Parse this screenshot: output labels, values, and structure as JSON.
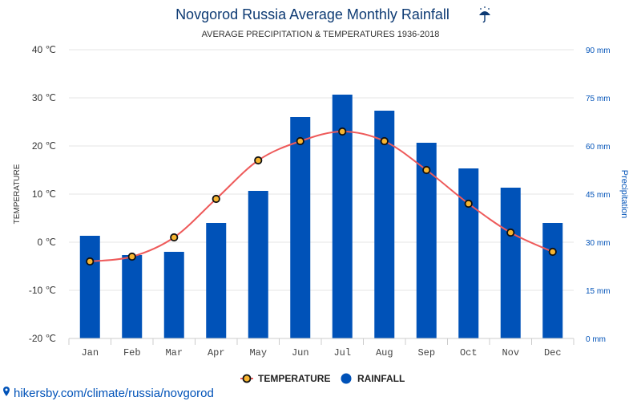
{
  "chart_data": {
    "type": "bar",
    "title": "Novgorod Russia Average Monthly Rainfall",
    "title_icon": "umbrella-icon",
    "subtitle": "AVERAGE PRECIPITATION & TEMPERATURES 1936-2018",
    "categories": [
      "Jan",
      "Feb",
      "Mar",
      "Apr",
      "May",
      "Jun",
      "Jul",
      "Aug",
      "Sep",
      "Oct",
      "Nov",
      "Dec"
    ],
    "y_left": {
      "label": "TEMPERATURE",
      "range": [
        -20,
        40
      ],
      "ticks": [
        "40 ℃",
        "30 ℃",
        "20 ℃",
        "10 ℃",
        "0 ℃",
        "-10 ℃",
        "-20 ℃"
      ]
    },
    "y_right": {
      "label": "Precipitation",
      "range": [
        0,
        90
      ],
      "ticks": [
        "90 mm",
        "75 mm",
        "60 mm",
        "45 mm",
        "30 mm",
        "15 mm",
        "0 mm"
      ]
    },
    "series": [
      {
        "name": "RAINFALL",
        "type": "bar",
        "axis": "right",
        "color": "#0052b8",
        "values": [
          32,
          26,
          27,
          36,
          46,
          69,
          76,
          71,
          61,
          53,
          47,
          36
        ]
      },
      {
        "name": "TEMPERATURE",
        "type": "line",
        "axis": "left",
        "color": "#ee5a5a",
        "marker_color": "#f7b531",
        "values": [
          -4,
          -3,
          1,
          9,
          17,
          21,
          23,
          21,
          15,
          8,
          2,
          -2
        ]
      }
    ],
    "grid": true,
    "legend_position": "bottom-center"
  },
  "footer": {
    "source_text": "hikersby.com/climate/russia/novgorod",
    "icon": "map-pin-icon"
  }
}
